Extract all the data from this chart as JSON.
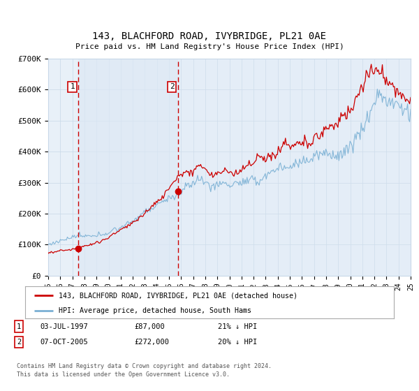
{
  "title": "143, BLACHFORD ROAD, IVYBRIDGE, PL21 0AE",
  "subtitle": "Price paid vs. HM Land Registry's House Price Index (HPI)",
  "ylim": [
    0,
    700000
  ],
  "yticks": [
    0,
    100000,
    200000,
    300000,
    400000,
    500000,
    600000,
    700000
  ],
  "ytick_labels": [
    "£0",
    "£100K",
    "£200K",
    "£300K",
    "£400K",
    "£500K",
    "£600K",
    "£700K"
  ],
  "hpi_color": "#7ab0d4",
  "price_color": "#cc0000",
  "vline_color": "#cc0000",
  "marker_color": "#cc0000",
  "grid_color": "#c8d8e8",
  "bg_color": "#e8f0f8",
  "legend_label_red": "143, BLACHFORD ROAD, IVYBRIDGE, PL21 0AE (detached house)",
  "legend_label_blue": "HPI: Average price, detached house, South Hams",
  "transaction1_date": "03-JUL-1997",
  "transaction1_price": "£87,000",
  "transaction1_hpi": "21% ↓ HPI",
  "transaction2_date": "07-OCT-2005",
  "transaction2_price": "£272,000",
  "transaction2_hpi": "20% ↓ HPI",
  "footer": "Contains HM Land Registry data © Crown copyright and database right 2024.\nThis data is licensed under the Open Government Licence v3.0.",
  "t1_year": 1997.5,
  "t2_year": 2005.75,
  "t1_price": 87000,
  "t2_price": 272000,
  "xlim_left": 1995,
  "xlim_right": 2025
}
